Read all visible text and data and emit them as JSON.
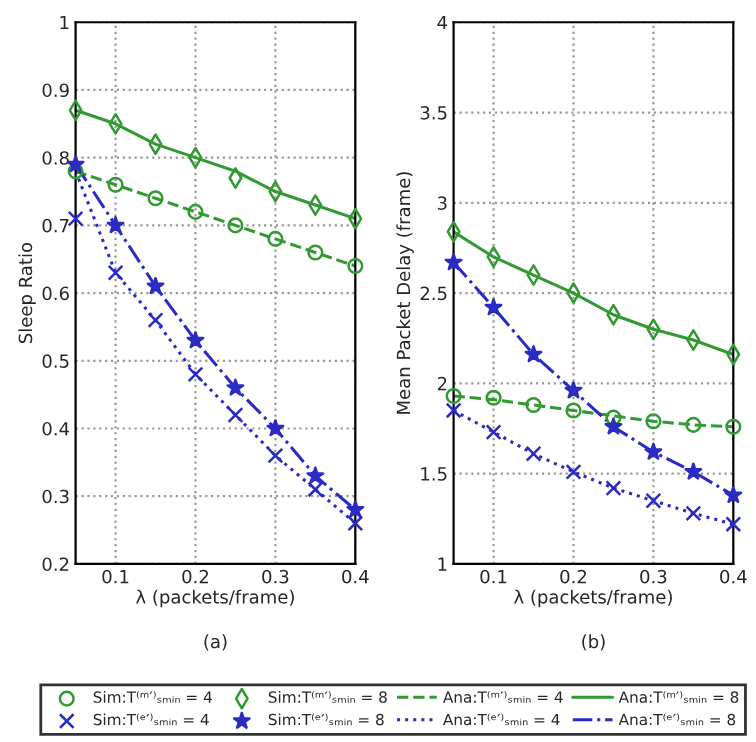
{
  "chart_data": [
    {
      "type": "line",
      "xlabel": "λ (packets/frame)",
      "ylabel": "Sleep Ratio",
      "annotations": [
        "(a)"
      ],
      "x": [
        0.05,
        0.1,
        0.15,
        0.2,
        0.25,
        0.3,
        0.35,
        0.4
      ],
      "xlim": [
        0.05,
        0.4
      ],
      "xticks": [
        0.1,
        0.2,
        0.3,
        0.4
      ],
      "ylim": [
        0.2,
        1
      ],
      "yticks": [
        0.2,
        0.3,
        0.4,
        0.5,
        0.6,
        0.7,
        0.8,
        0.9,
        1
      ],
      "grid": true,
      "legend": "bottom",
      "series": [
        {
          "name": "Sim:T⁽ᵐ′⁾ₛₘᵢₙ = 4",
          "type": "scatter",
          "marker": "circle",
          "color": "#339933",
          "values": [
            0.78,
            0.76,
            0.74,
            0.72,
            0.7,
            0.68,
            0.66,
            0.64
          ]
        },
        {
          "name": "Sim:T⁽ᵐ′⁾ₛₘᵢₙ = 8",
          "type": "scatter",
          "marker": "diamond",
          "color": "#339933",
          "values": [
            0.87,
            0.85,
            0.82,
            0.8,
            0.77,
            0.75,
            0.73,
            0.71
          ]
        },
        {
          "name": "Ana:T⁽ᵐ′⁾ₛₘᵢₙ = 4",
          "type": "line",
          "line_style": "dashed",
          "color": "#339933",
          "values": [
            0.78,
            0.76,
            0.74,
            0.72,
            0.7,
            0.68,
            0.66,
            0.64
          ]
        },
        {
          "name": "Ana:T⁽ᵐ′⁾ₛₘᵢₙ = 8",
          "type": "line",
          "line_style": "solid",
          "color": "#339933",
          "values": [
            0.87,
            0.85,
            0.82,
            0.8,
            0.78,
            0.75,
            0.73,
            0.71
          ]
        },
        {
          "name": "Sim:T⁽ᵉ′⁾ₛₘᵢₙ = 4",
          "type": "scatter",
          "marker": "cross",
          "color": "#2b2bc4",
          "values": [
            0.71,
            0.63,
            0.56,
            0.48,
            0.42,
            0.36,
            0.31,
            0.26
          ]
        },
        {
          "name": "Sim:T⁽ᵉ′⁾ₛₘᵢₙ = 8",
          "type": "scatter",
          "marker": "star",
          "color": "#2b2bc4",
          "values": [
            0.79,
            0.7,
            0.61,
            0.53,
            0.46,
            0.4,
            0.33,
            0.28
          ]
        },
        {
          "name": "Ana:T⁽ᵉ′⁾ₛₘᵢₙ = 4",
          "type": "line",
          "line_style": "dotted",
          "color": "#2b2bc4",
          "values": [
            0.78,
            0.63,
            0.56,
            0.48,
            0.42,
            0.36,
            0.31,
            0.26
          ]
        },
        {
          "name": "Ana:T⁽ᵉ′⁾ₛₘᵢₙ = 8",
          "type": "line",
          "line_style": "dashdot",
          "color": "#2b2bc4",
          "values": [
            0.79,
            0.7,
            0.61,
            0.53,
            0.46,
            0.4,
            0.33,
            0.28
          ]
        }
      ]
    },
    {
      "type": "line",
      "xlabel": "λ (packets/frame)",
      "ylabel": "Mean Packet Delay (frame)",
      "annotations": [
        "(b)"
      ],
      "x": [
        0.05,
        0.1,
        0.15,
        0.2,
        0.25,
        0.3,
        0.35,
        0.4
      ],
      "xlim": [
        0.05,
        0.4
      ],
      "xticks": [
        0.1,
        0.2,
        0.3,
        0.4
      ],
      "ylim": [
        1,
        4
      ],
      "yticks": [
        1,
        1.5,
        2,
        2.5,
        3,
        3.5,
        4
      ],
      "grid": true,
      "series": [
        {
          "type": "scatter",
          "marker": "circle",
          "color": "#339933",
          "values": [
            1.93,
            1.92,
            1.88,
            1.85,
            1.81,
            1.79,
            1.77,
            1.76
          ]
        },
        {
          "type": "scatter",
          "marker": "diamond",
          "color": "#339933",
          "values": [
            2.84,
            2.7,
            2.6,
            2.5,
            2.38,
            2.3,
            2.24,
            2.16
          ]
        },
        {
          "type": "line",
          "line_style": "dashed",
          "color": "#339933",
          "values": [
            1.93,
            1.91,
            1.88,
            1.85,
            1.82,
            1.79,
            1.77,
            1.76
          ]
        },
        {
          "type": "line",
          "line_style": "solid",
          "color": "#339933",
          "values": [
            2.84,
            2.7,
            2.6,
            2.5,
            2.38,
            2.3,
            2.24,
            2.16
          ]
        },
        {
          "type": "scatter",
          "marker": "cross",
          "color": "#2b2bc4",
          "values": [
            1.85,
            1.73,
            1.61,
            1.51,
            1.42,
            1.35,
            1.28,
            1.22
          ]
        },
        {
          "type": "scatter",
          "marker": "star",
          "color": "#2b2bc4",
          "values": [
            2.67,
            2.42,
            2.16,
            1.96,
            1.76,
            1.62,
            1.51,
            1.38
          ]
        },
        {
          "type": "line",
          "line_style": "dotted",
          "color": "#2b2bc4",
          "values": [
            1.85,
            1.73,
            1.61,
            1.51,
            1.42,
            1.35,
            1.28,
            1.22
          ]
        },
        {
          "type": "line",
          "line_style": "dashdot",
          "color": "#2b2bc4",
          "values": [
            2.67,
            2.42,
            2.16,
            1.96,
            1.76,
            1.62,
            1.51,
            1.38
          ]
        }
      ]
    }
  ]
}
